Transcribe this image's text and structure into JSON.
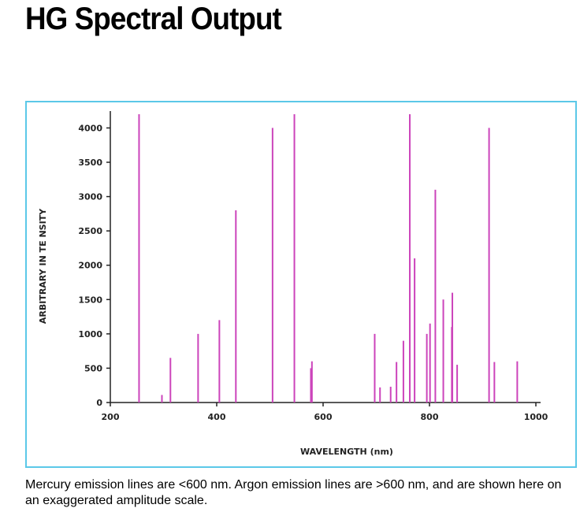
{
  "page": {
    "title": "HG Spectral Output",
    "caption": "Mercury emission lines are <600 nm. Argon emission lines are >600 nm, and are shown here on an exaggerated amplitude scale."
  },
  "chart_data": {
    "type": "bar",
    "title": "",
    "xlabel": "WAVELENGTH (nm)",
    "ylabel": "ARBITRARY IN TE NSITY",
    "xlim": [
      200,
      1000
    ],
    "ylim": [
      0,
      4200
    ],
    "xticks": [
      {
        "value": 200,
        "label": "200"
      },
      {
        "value": 400,
        "label": "400"
      },
      {
        "value": 600,
        "label": "600"
      },
      {
        "value": 800,
        "label": "800"
      },
      {
        "value": 1000,
        "label": "1000"
      }
    ],
    "yticks": [
      {
        "value": 0,
        "label": "0"
      },
      {
        "value": 500,
        "label": "500"
      },
      {
        "value": 1000,
        "label": "1000"
      },
      {
        "value": 1500,
        "label": "1500"
      },
      {
        "value": 2000,
        "label": "2000"
      },
      {
        "value": 2500,
        "label": "2500"
      },
      {
        "value": 3000,
        "label": "3000"
      },
      {
        "value": 3500,
        "label": "3500"
      },
      {
        "value": 4000,
        "label": "4000"
      }
    ],
    "grid": false,
    "legend": "none",
    "line_color": "#cc44bb",
    "series": [
      {
        "points": [
          {
            "x": 254,
            "y": 4200
          },
          {
            "x": 297,
            "y": 110
          },
          {
            "x": 313,
            "y": 650
          },
          {
            "x": 365,
            "y": 1000
          },
          {
            "x": 405,
            "y": 1200
          },
          {
            "x": 436,
            "y": 2800
          },
          {
            "x": 505,
            "y": 4000
          },
          {
            "x": 546,
            "y": 4200
          },
          {
            "x": 577,
            "y": 500
          },
          {
            "x": 579,
            "y": 600
          },
          {
            "x": 697,
            "y": 1000
          },
          {
            "x": 707,
            "y": 220
          },
          {
            "x": 727,
            "y": 230
          },
          {
            "x": 738,
            "y": 590
          },
          {
            "x": 751,
            "y": 900
          },
          {
            "x": 763,
            "y": 4200
          },
          {
            "x": 772,
            "y": 2100
          },
          {
            "x": 795,
            "y": 1000
          },
          {
            "x": 801,
            "y": 1150
          },
          {
            "x": 811,
            "y": 3100
          },
          {
            "x": 826,
            "y": 1500
          },
          {
            "x": 842,
            "y": 1100
          },
          {
            "x": 843,
            "y": 1600
          },
          {
            "x": 852,
            "y": 550
          },
          {
            "x": 912,
            "y": 4000
          },
          {
            "x": 922,
            "y": 590
          },
          {
            "x": 965,
            "y": 600
          }
        ]
      }
    ]
  }
}
